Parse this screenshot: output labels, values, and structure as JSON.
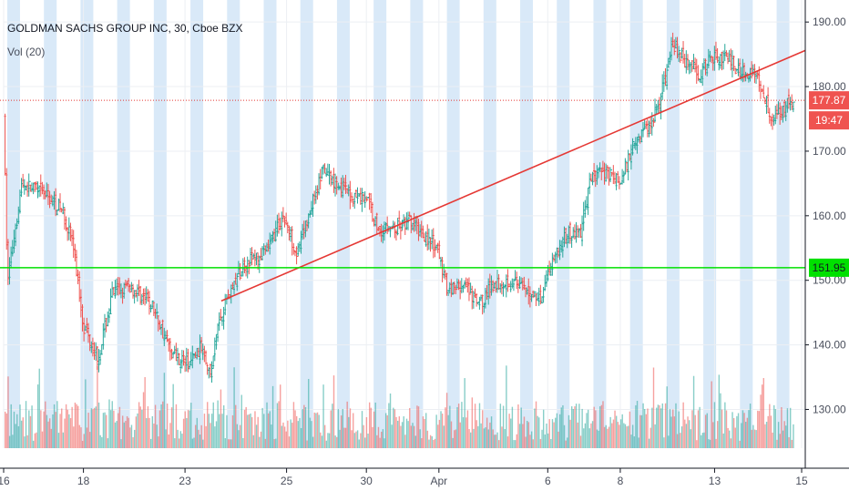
{
  "header": {
    "title": "GOLDMAN SACHS GROUP INC, 30, Cboe BZX",
    "volume_label": "Vol (20)"
  },
  "colors": {
    "up": "#26a69a",
    "down": "#ef5350",
    "session_shade": "#cfe3f6",
    "trendline": "#e53935",
    "support": "#00e000",
    "price_badge": "#ef5350",
    "support_badge": "#00e000"
  },
  "badges": {
    "last_price": "177.87",
    "countdown": "19:47",
    "support_price": "151.95"
  },
  "chart_data": {
    "type": "candlestick",
    "title": "GOLDMAN SACHS GROUP INC, 30, Cboe BZX",
    "ylim": [
      124,
      192
    ],
    "y_ticks": [
      130,
      140,
      150,
      160,
      170,
      180,
      190
    ],
    "y_tick_labels": [
      "130.00",
      "140.00",
      "150.00",
      "160.00",
      "170.00",
      "180.00",
      "190.00"
    ],
    "x_ticks": [
      {
        "label": "16",
        "pos": 0.0
      },
      {
        "label": "18",
        "pos": 1.1
      },
      {
        "label": "23",
        "pos": 2.5
      },
      {
        "label": "25",
        "pos": 3.9
      },
      {
        "label": "30",
        "pos": 5.0
      },
      {
        "label": "Apr",
        "pos": 6.0
      },
      {
        "label": "6",
        "pos": 7.5
      },
      {
        "label": "8",
        "pos": 8.5
      },
      {
        "label": "13",
        "pos": 9.8
      },
      {
        "label": "15",
        "pos": 11.0
      }
    ],
    "horizontal_lines": [
      {
        "value": 177.87,
        "style": "dotted",
        "label": "177.87"
      },
      {
        "value": 151.95,
        "style": "solid",
        "label": "151.95"
      }
    ],
    "trendline": {
      "from": [
        3.0,
        146.8
      ],
      "to": [
        11.05,
        185.6
      ]
    },
    "price_path": [
      {
        "x": 0.0,
        "y": 176
      },
      {
        "x": 0.05,
        "y": 150
      },
      {
        "x": 0.25,
        "y": 165
      },
      {
        "x": 0.6,
        "y": 163
      },
      {
        "x": 0.8,
        "y": 161
      },
      {
        "x": 0.95,
        "y": 156
      },
      {
        "x": 1.1,
        "y": 143
      },
      {
        "x": 1.3,
        "y": 138
      },
      {
        "x": 1.5,
        "y": 148
      },
      {
        "x": 1.75,
        "y": 149
      },
      {
        "x": 2.05,
        "y": 146
      },
      {
        "x": 2.3,
        "y": 139
      },
      {
        "x": 2.55,
        "y": 137
      },
      {
        "x": 2.75,
        "y": 140
      },
      {
        "x": 2.85,
        "y": 135
      },
      {
        "x": 2.95,
        "y": 143
      },
      {
        "x": 3.05,
        "y": 146.5
      },
      {
        "x": 3.2,
        "y": 150
      },
      {
        "x": 3.35,
        "y": 153
      },
      {
        "x": 3.6,
        "y": 154
      },
      {
        "x": 3.85,
        "y": 160
      },
      {
        "x": 4.05,
        "y": 154
      },
      {
        "x": 4.25,
        "y": 162
      },
      {
        "x": 4.4,
        "y": 167
      },
      {
        "x": 4.6,
        "y": 165
      },
      {
        "x": 4.8,
        "y": 163
      },
      {
        "x": 5.0,
        "y": 163
      },
      {
        "x": 5.15,
        "y": 158
      },
      {
        "x": 5.4,
        "y": 158
      },
      {
        "x": 5.6,
        "y": 159
      },
      {
        "x": 5.8,
        "y": 157
      },
      {
        "x": 6.0,
        "y": 154
      },
      {
        "x": 6.1,
        "y": 149
      },
      {
        "x": 6.35,
        "y": 149
      },
      {
        "x": 6.55,
        "y": 146
      },
      {
        "x": 6.75,
        "y": 149.5
      },
      {
        "x": 7.0,
        "y": 150
      },
      {
        "x": 7.2,
        "y": 148
      },
      {
        "x": 7.4,
        "y": 147.5
      },
      {
        "x": 7.55,
        "y": 153
      },
      {
        "x": 7.75,
        "y": 157
      },
      {
        "x": 7.95,
        "y": 157.5
      },
      {
        "x": 8.1,
        "y": 166
      },
      {
        "x": 8.3,
        "y": 167
      },
      {
        "x": 8.5,
        "y": 165
      },
      {
        "x": 8.7,
        "y": 172
      },
      {
        "x": 8.9,
        "y": 174
      },
      {
        "x": 9.05,
        "y": 178
      },
      {
        "x": 9.15,
        "y": 183
      },
      {
        "x": 9.2,
        "y": 187
      },
      {
        "x": 9.4,
        "y": 184
      },
      {
        "x": 9.6,
        "y": 182
      },
      {
        "x": 9.8,
        "y": 185
      },
      {
        "x": 10.0,
        "y": 184
      },
      {
        "x": 10.2,
        "y": 182
      },
      {
        "x": 10.35,
        "y": 182.5
      },
      {
        "x": 10.5,
        "y": 178
      },
      {
        "x": 10.6,
        "y": 175
      },
      {
        "x": 10.75,
        "y": 177
      },
      {
        "x": 10.9,
        "y": 177.5
      }
    ],
    "volume": {
      "up_color": "#26a69a",
      "down_color": "#ef5350",
      "note_scale": "relative bar heights, 0 to 1"
    }
  }
}
